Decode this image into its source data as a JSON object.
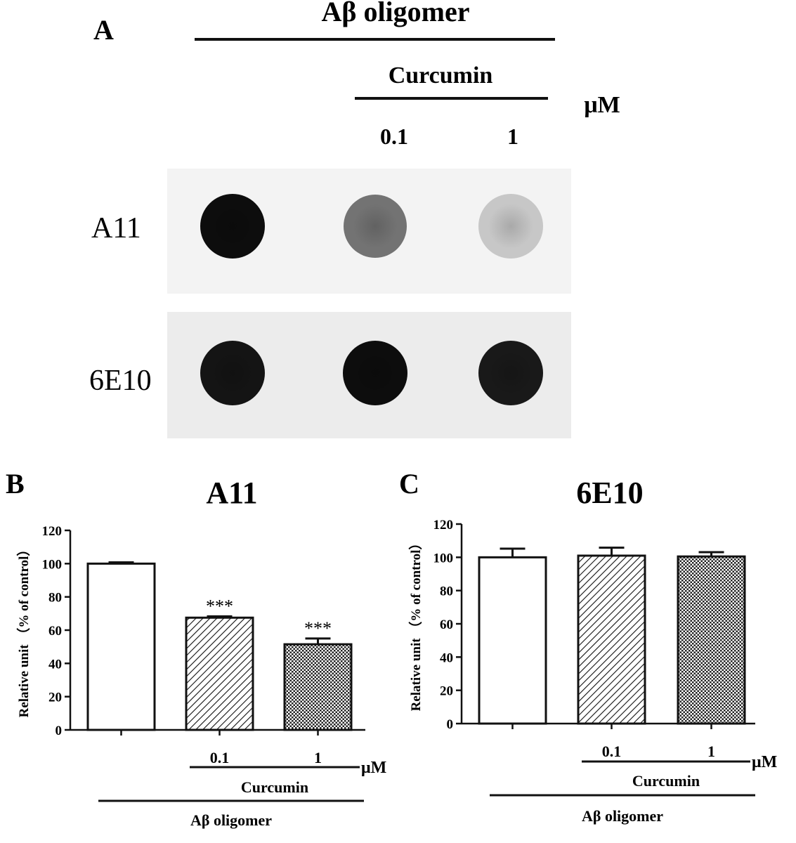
{
  "panel_a": {
    "letter": "A",
    "header": "Aβ oligomer",
    "curcumin_label": "Curcumin",
    "unit": "μM",
    "concentrations": [
      "0.1",
      "1"
    ],
    "rows": [
      {
        "label": "A11",
        "spot_darkness": [
          0.95,
          0.55,
          0.22
        ]
      },
      {
        "label": "6E10",
        "spot_darkness": [
          0.92,
          0.95,
          0.9
        ]
      }
    ]
  },
  "chart_data": [
    {
      "type": "bar",
      "panel": "B",
      "title": "A11",
      "ylabel": "Relative unit （% of control）",
      "ylim": [
        0,
        120
      ],
      "yticks": [
        0,
        20,
        40,
        60,
        80,
        100,
        120
      ],
      "categories": [
        "",
        "0.1",
        "1"
      ],
      "values": [
        100,
        67.5,
        51.5
      ],
      "errors": [
        0.8,
        0.8,
        3.5
      ],
      "fills": [
        "none",
        "diagonal",
        "checker"
      ],
      "annotations": [
        "",
        "***",
        "***"
      ],
      "curcumin_label": "Curcumin",
      "group_label": "Aβ oligomer",
      "unit": "μM"
    },
    {
      "type": "bar",
      "panel": "C",
      "title": "6E10",
      "ylabel": "Relative unit （% of control）",
      "ylim": [
        0,
        120
      ],
      "yticks": [
        0,
        20,
        40,
        60,
        80,
        100,
        120
      ],
      "categories": [
        "",
        "0.1",
        "1"
      ],
      "values": [
        100,
        101,
        100.5
      ],
      "errors": [
        5.2,
        4.8,
        2.6
      ],
      "fills": [
        "none",
        "diagonal",
        "checker"
      ],
      "annotations": [
        "",
        "",
        ""
      ],
      "curcumin_label": "Curcumin",
      "group_label": "Aβ oligomer",
      "unit": "μM"
    }
  ]
}
